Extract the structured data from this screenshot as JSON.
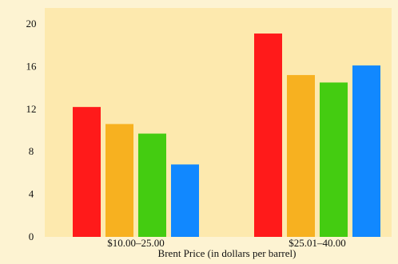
{
  "chart_data": {
    "type": "bar",
    "categories": [
      "$10.00–25.00",
      "$25.01–40.00"
    ],
    "series": [
      {
        "values": [
          12.2,
          19.1
        ],
        "color": "#ff1a1a"
      },
      {
        "values": [
          10.6,
          15.2
        ],
        "color": "#f7b120"
      },
      {
        "values": [
          9.7,
          14.5
        ],
        "color": "#44cc11"
      },
      {
        "values": [
          6.8,
          16.1
        ],
        "color": "#1188ff"
      }
    ],
    "yticks": [
      0,
      4,
      8,
      12,
      16,
      20
    ],
    "ylim": [
      0,
      21.5
    ],
    "xlabel": "Brent Price (in dollars per barrel)",
    "ylabel": "",
    "title": "",
    "grid": false,
    "plot_background": "#fde9ae",
    "page_background": "#fdf3d2"
  }
}
